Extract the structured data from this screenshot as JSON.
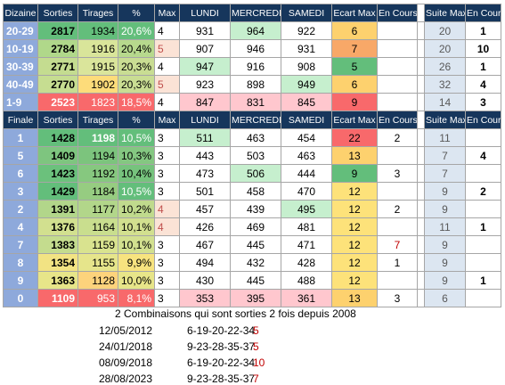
{
  "top_table": {
    "headers": [
      "Dizaine",
      "Sorties",
      "Tirages",
      "%",
      "Max",
      "LUNDI",
      "MERCREDI",
      "SAMEDI",
      "Ecart Max",
      "En Cours",
      "",
      "Suite Max",
      "En Cours"
    ],
    "rows": [
      {
        "key": "20-29",
        "sorties": "2817",
        "tirages": "1934",
        "pct": "20,6%",
        "max": "4",
        "lundi": "931",
        "mercredi": "964",
        "samedi": "922",
        "ecart": "6",
        "encours": "",
        "suite": "20",
        "encours2": "1"
      },
      {
        "key": "10-19",
        "sorties": "2784",
        "tirages": "1916",
        "pct": "20,4%",
        "max": "5",
        "lundi": "907",
        "mercredi": "946",
        "samedi": "931",
        "ecart": "7",
        "encours": "",
        "suite": "20",
        "encours2": "10"
      },
      {
        "key": "30-39",
        "sorties": "2771",
        "tirages": "1915",
        "pct": "20,3%",
        "max": "4",
        "lundi": "947",
        "mercredi": "916",
        "samedi": "908",
        "ecart": "5",
        "encours": "",
        "suite": "26",
        "encours2": "1"
      },
      {
        "key": "40-49",
        "sorties": "2770",
        "tirages": "1902",
        "pct": "20,3%",
        "max": "5",
        "lundi": "923",
        "mercredi": "898",
        "samedi": "949",
        "ecart": "6",
        "encours": "",
        "suite": "32",
        "encours2": "4"
      },
      {
        "key": "1-9",
        "sorties": "2523",
        "tirages": "1823",
        "pct": "18,5%",
        "max": "4",
        "lundi": "847",
        "mercredi": "831",
        "samedi": "845",
        "ecart": "9",
        "encours": "",
        "suite": "14",
        "encours2": "3"
      }
    ]
  },
  "bottom_table": {
    "headers": [
      "Finale",
      "Sorties",
      "Tirages",
      "%",
      "Max",
      "LUNDI",
      "MERCREDI",
      "SAMEDI",
      "Ecart Max",
      "En Cours",
      "",
      "Suite Max",
      "En Cours"
    ],
    "rows": [
      {
        "key": "1",
        "sorties": "1428",
        "tirages": "1198",
        "pct": "10,5%",
        "max": "3",
        "lundi": "511",
        "mercredi": "463",
        "samedi": "454",
        "ecart": "22",
        "encours": "2",
        "suite": "11",
        "encours2": ""
      },
      {
        "key": "5",
        "sorties": "1409",
        "tirages": "1194",
        "pct": "10,3%",
        "max": "3",
        "lundi": "443",
        "mercredi": "503",
        "samedi": "463",
        "ecart": "13",
        "encours": "",
        "suite": "7",
        "encours2": "4"
      },
      {
        "key": "6",
        "sorties": "1423",
        "tirages": "1192",
        "pct": "10,4%",
        "max": "3",
        "lundi": "473",
        "mercredi": "506",
        "samedi": "444",
        "ecart": "9",
        "encours": "3",
        "suite": "7",
        "encours2": ""
      },
      {
        "key": "3",
        "sorties": "1429",
        "tirages": "1184",
        "pct": "10,5%",
        "max": "3",
        "lundi": "501",
        "mercredi": "458",
        "samedi": "470",
        "ecart": "12",
        "encours": "",
        "suite": "9",
        "encours2": "2"
      },
      {
        "key": "2",
        "sorties": "1391",
        "tirages": "1177",
        "pct": "10,2%",
        "max": "4",
        "lundi": "457",
        "mercredi": "439",
        "samedi": "495",
        "ecart": "12",
        "encours": "2",
        "suite": "9",
        "encours2": ""
      },
      {
        "key": "4",
        "sorties": "1376",
        "tirages": "1164",
        "pct": "10,1%",
        "max": "4",
        "lundi": "426",
        "mercredi": "469",
        "samedi": "481",
        "ecart": "12",
        "encours": "",
        "suite": "11",
        "encours2": "1"
      },
      {
        "key": "7",
        "sorties": "1383",
        "tirages": "1159",
        "pct": "10,1%",
        "max": "3",
        "lundi": "467",
        "mercredi": "445",
        "samedi": "471",
        "ecart": "12",
        "encours": "7",
        "suite": "9",
        "encours2": ""
      },
      {
        "key": "8",
        "sorties": "1354",
        "tirages": "1155",
        "pct": "9,9%",
        "max": "3",
        "lundi": "494",
        "mercredi": "432",
        "samedi": "428",
        "ecart": "12",
        "encours": "1",
        "suite": "9",
        "encours2": ""
      },
      {
        "key": "9",
        "sorties": "1363",
        "tirages": "1128",
        "pct": "10,0%",
        "max": "3",
        "lundi": "430",
        "mercredi": "445",
        "samedi": "488",
        "ecart": "12",
        "encours": "",
        "suite": "9",
        "encours2": "1"
      },
      {
        "key": "0",
        "sorties": "1109",
        "tirages": "953",
        "pct": "8,1%",
        "max": "3",
        "lundi": "353",
        "mercredi": "395",
        "samedi": "361",
        "ecart": "13",
        "encours": "3",
        "suite": "6",
        "encours2": ""
      }
    ]
  },
  "combinations": {
    "title": "2 Combinaisons qui sont sorties 2 fois depuis 2008",
    "rows": [
      {
        "date": "12/05/2012",
        "numbers": "6-19-20-22-34",
        "count": "5"
      },
      {
        "date": "24/01/2018",
        "numbers": "9-23-28-35-37",
        "count": "5"
      },
      {
        "date": "08/09/2018",
        "numbers": "6-19-20-22-34",
        "count": "10"
      },
      {
        "date": "28/08/2023",
        "numbers": "9-23-28-35-37",
        "count": "7"
      }
    ]
  },
  "colors": {
    "header_bg": "#16365c",
    "key_bg": "#8ea9db",
    "suite_bg": "#dce6f1",
    "green_dark": "#63be7b",
    "green_light": "#c6efce",
    "orange": "#f8b26a",
    "red": "#f8696b",
    "pink": "#ffc7ce",
    "red_text": "#c00000"
  }
}
